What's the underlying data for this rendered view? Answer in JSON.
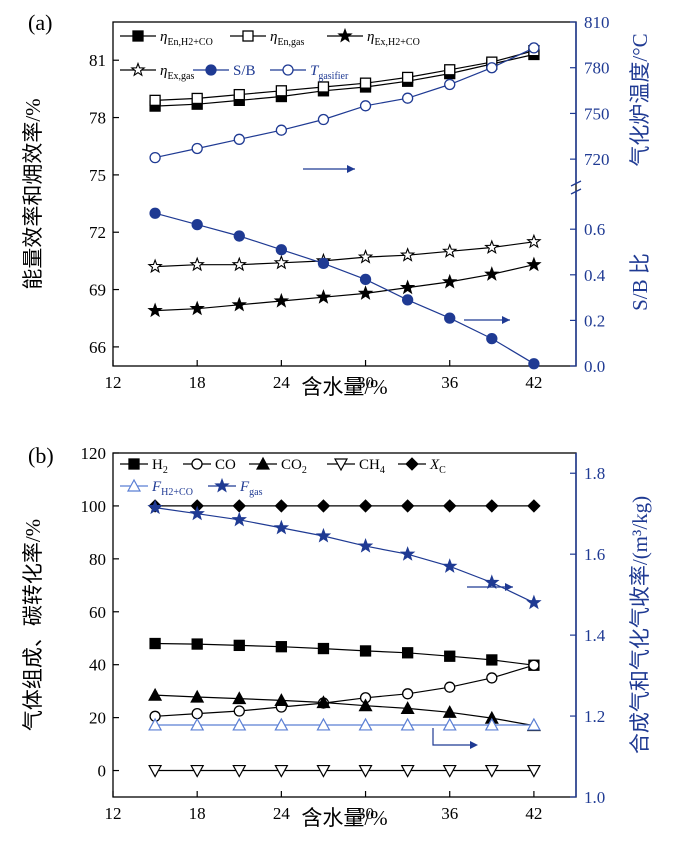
{
  "figure": {
    "colors": {
      "black": "#000000",
      "blue": "#1f3a93"
    }
  },
  "chart_data": [
    {
      "panel": "(a)",
      "type": "line",
      "x": [
        15,
        18,
        21,
        24,
        27,
        30,
        33,
        36,
        39,
        42
      ],
      "xlabel": "含水量/%",
      "xticks": [
        "12",
        "18",
        "24",
        "30",
        "36",
        "42"
      ],
      "xlim": [
        12,
        45
      ],
      "ylabel_left": "能量效率和㶲效率/%",
      "ylim_left": [
        65,
        83
      ],
      "yticks_left": [
        "66",
        "69",
        "72",
        "75",
        "78",
        "81"
      ],
      "ylabel_right_top": "气化炉温度/°C",
      "ylim_right_top": [
        705,
        810
      ],
      "yticks_right_top": [
        "720",
        "750",
        "780",
        "810"
      ],
      "ylabel_right_bottom": "S/B 比",
      "ylim_right_bottom": [
        0,
        0.75
      ],
      "yticks_right_bottom": [
        "0.0",
        "0.2",
        "0.4",
        "0.6"
      ],
      "legend_position": "top-left",
      "series": [
        {
          "name": "ηEn,H2+CO",
          "label_main": "η",
          "label_sub": "En,H2+CO",
          "marker": "filled-square",
          "axis": "left",
          "color": "#000000",
          "values": [
            78.6,
            78.7,
            78.9,
            79.1,
            79.4,
            79.6,
            79.9,
            80.3,
            80.8,
            81.3
          ]
        },
        {
          "name": "ηEn,gas",
          "label_main": "η",
          "label_sub": "En,gas",
          "marker": "open-square",
          "axis": "left",
          "color": "#000000",
          "values": [
            78.9,
            79.0,
            79.2,
            79.4,
            79.6,
            79.8,
            80.1,
            80.5,
            80.9,
            81.5
          ]
        },
        {
          "name": "ηEx,H2+CO",
          "label_main": "η",
          "label_sub": "Ex,H2+CO",
          "marker": "filled-star",
          "axis": "left",
          "color": "#000000",
          "values": [
            67.9,
            68.0,
            68.2,
            68.4,
            68.6,
            68.8,
            69.1,
            69.4,
            69.8,
            70.3
          ]
        },
        {
          "name": "ηEx,gas",
          "label_main": "η",
          "label_sub": "Ex,gas",
          "marker": "open-star",
          "axis": "left",
          "color": "#000000",
          "values": [
            70.2,
            70.3,
            70.3,
            70.4,
            70.5,
            70.7,
            70.8,
            71.0,
            71.2,
            71.5
          ]
        },
        {
          "name": "S/B",
          "label_main": "S/B",
          "label_sub": "",
          "marker": "filled-circle",
          "axis": "right_bottom",
          "color": "#1f3a93",
          "values": [
            0.67,
            0.62,
            0.57,
            0.51,
            0.45,
            0.38,
            0.29,
            0.21,
            0.12,
            0.01
          ]
        },
        {
          "name": "Tgasifier",
          "label_main": "T",
          "label_sub": "gasifier",
          "marker": "open-circle",
          "axis": "right_top",
          "color": "#1f3a93",
          "values": [
            721,
            727,
            733,
            739,
            746,
            755,
            760,
            769,
            780,
            793
          ]
        }
      ]
    },
    {
      "panel": "(b)",
      "type": "line",
      "x": [
        15,
        18,
        21,
        24,
        27,
        30,
        33,
        36,
        39,
        42
      ],
      "xlabel": "含水量/%",
      "xticks": [
        "12",
        "18",
        "24",
        "30",
        "36",
        "42"
      ],
      "xlim": [
        12,
        45
      ],
      "ylabel_left": "气体组成、碳转化率/%",
      "ylim_left": [
        -10,
        120
      ],
      "yticks_left": [
        "0",
        "20",
        "40",
        "60",
        "80",
        "100",
        "120"
      ],
      "ylabel_right": "合成气和气化气收率/(m³/kg)",
      "ylim_right": [
        1.0,
        1.85
      ],
      "yticks_right": [
        "1.0",
        "1.2",
        "1.4",
        "1.6",
        "1.8"
      ],
      "legend_position": "top",
      "series": [
        {
          "name": "H2",
          "label_main": "H",
          "label_sub": "2",
          "marker": "filled-square",
          "axis": "left",
          "color": "#000000",
          "values": [
            48.0,
            47.8,
            47.3,
            46.8,
            46.1,
            45.2,
            44.5,
            43.2,
            41.8,
            39.8
          ]
        },
        {
          "name": "CO",
          "label_main": "CO",
          "label_sub": "",
          "marker": "open-circle",
          "axis": "left",
          "color": "#000000",
          "values": [
            20.5,
            21.5,
            22.5,
            24.0,
            25.5,
            27.5,
            29.0,
            31.5,
            35.0,
            39.8
          ]
        },
        {
          "name": "CO2",
          "label_main": "CO",
          "label_sub": "2",
          "marker": "filled-triangle",
          "axis": "left",
          "color": "#000000",
          "values": [
            28.5,
            27.8,
            27.2,
            26.5,
            25.7,
            24.5,
            23.5,
            22.0,
            19.8,
            17.0
          ]
        },
        {
          "name": "CH4",
          "label_main": "CH",
          "label_sub": "4",
          "marker": "open-triangle-down",
          "axis": "left",
          "color": "#000000",
          "values": [
            0,
            0,
            0,
            0,
            0,
            0,
            0,
            0,
            0,
            0
          ]
        },
        {
          "name": "XC",
          "label_main": "X",
          "label_sub": "C",
          "marker": "filled-diamond",
          "axis": "left",
          "color": "#000000",
          "values": [
            100,
            100,
            100,
            100,
            100,
            100,
            100,
            100,
            100,
            100
          ]
        },
        {
          "name": "FH2+CO",
          "label_main": "F",
          "label_sub": "H2+CO",
          "marker": "open-triangle",
          "axis": "right",
          "color": "#5b7fd4",
          "values": [
            1.178,
            1.178,
            1.178,
            1.178,
            1.178,
            1.178,
            1.178,
            1.178,
            1.178,
            1.178
          ]
        },
        {
          "name": "Fgas",
          "label_main": "F",
          "label_sub": "gas",
          "marker": "filled-star",
          "axis": "right",
          "color": "#1f3a93",
          "values": [
            1.715,
            1.7,
            1.685,
            1.665,
            1.645,
            1.62,
            1.6,
            1.57,
            1.53,
            1.48
          ]
        }
      ]
    }
  ]
}
